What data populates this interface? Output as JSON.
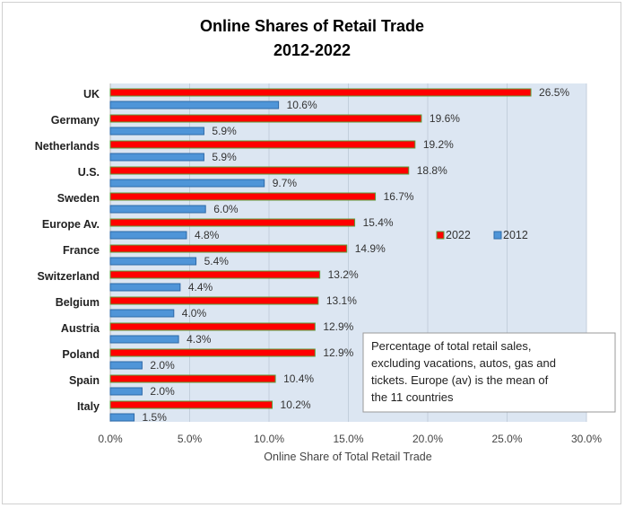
{
  "chart_data": {
    "type": "bar",
    "orientation": "horizontal",
    "title_line1": "Online Shares of Retail Trade",
    "title_line2": "2012-2022",
    "xlabel": "Online Share of Total Retail Trade",
    "ylabel": "",
    "xlim": [
      0,
      30
    ],
    "x_ticks": [
      "0.0%",
      "5.0%",
      "10.0%",
      "15.0%",
      "20.0%",
      "25.0%",
      "30.0%"
    ],
    "grid": true,
    "legend_position": "right",
    "categories": [
      "UK",
      "Germany",
      "Netherlands",
      "U.S.",
      "Sweden",
      "Europe Av.",
      "France",
      "Switzerland",
      "Belgium",
      "Austria",
      "Poland",
      "Spain",
      "Italy"
    ],
    "series": [
      {
        "name": "2022",
        "color": "#ff0000",
        "values": [
          26.5,
          19.6,
          19.2,
          18.8,
          16.7,
          15.4,
          14.9,
          13.2,
          13.1,
          12.9,
          12.9,
          10.4,
          10.2
        ],
        "labels": [
          "26.5%",
          "19.6%",
          "19.2%",
          "18.8%",
          "16.7%",
          "15.4%",
          "14.9%",
          "13.2%",
          "13.1%",
          "12.9%",
          "12.9%",
          "10.4%",
          "10.2%"
        ]
      },
      {
        "name": "2012",
        "color": "#4f95d8",
        "values": [
          10.6,
          5.9,
          5.9,
          9.7,
          6.0,
          4.8,
          5.4,
          4.4,
          4.0,
          4.3,
          2.0,
          2.0,
          1.5
        ],
        "labels": [
          "10.6%",
          "5.9%",
          "5.9%",
          "9.7%",
          "6.0%",
          "4.8%",
          "5.4%",
          "4.4%",
          "4.0%",
          "4.3%",
          "2.0%",
          "2.0%",
          "1.5%"
        ]
      }
    ],
    "annotation_lines": [
      "Percentage of total retail sales,",
      "excluding vacations, autos, gas and",
      "tickets. Europe (av) is the mean of",
      "the 11 countries"
    ],
    "colors": {
      "plot_background": "#dce6f2",
      "grid": "#c3cfdc",
      "bar_2022_fill": "#ff0000",
      "bar_2022_border": "#5a9e3a",
      "bar_2012_fill": "#4f95d8",
      "bar_2012_border": "#2e6aa8"
    }
  }
}
